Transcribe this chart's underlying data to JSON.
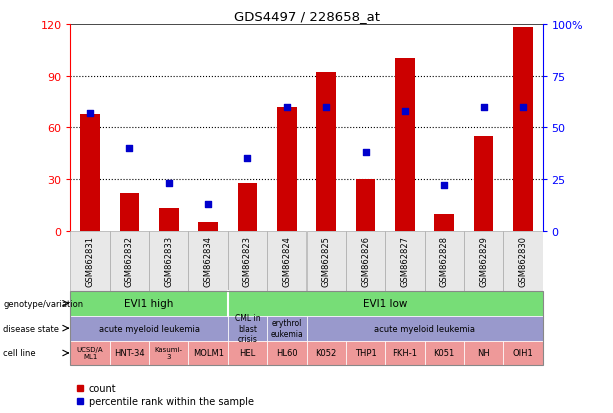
{
  "title": "GDS4497 / 228658_at",
  "samples": [
    "GSM862831",
    "GSM862832",
    "GSM862833",
    "GSM862834",
    "GSM862823",
    "GSM862824",
    "GSM862825",
    "GSM862826",
    "GSM862827",
    "GSM862828",
    "GSM862829",
    "GSM862830"
  ],
  "counts": [
    68,
    22,
    13,
    5,
    28,
    72,
    92,
    30,
    100,
    10,
    55,
    118
  ],
  "percentiles": [
    57,
    40,
    23,
    13,
    35,
    60,
    60,
    38,
    58,
    22,
    60,
    60
  ],
  "ylim_left": [
    0,
    120
  ],
  "ylim_right": [
    0,
    100
  ],
  "yticks_left": [
    0,
    30,
    60,
    90,
    120
  ],
  "yticks_right": [
    0,
    25,
    50,
    75,
    100
  ],
  "ytick_labels_left": [
    "0",
    "30",
    "60",
    "90",
    "120"
  ],
  "ytick_labels_right": [
    "0",
    "25",
    "50",
    "75",
    "100%"
  ],
  "bar_color": "#cc0000",
  "dot_color": "#0000cc",
  "genotype_groups": [
    {
      "label": "EVI1 high",
      "start": 0,
      "end": 4,
      "color": "#77dd77"
    },
    {
      "label": "EVI1 low",
      "start": 4,
      "end": 12,
      "color": "#77dd77"
    }
  ],
  "disease_groups": [
    {
      "label": "acute myeloid leukemia",
      "start": 0,
      "end": 4,
      "color": "#9999cc"
    },
    {
      "label": "CML in\nblast\ncrisis",
      "start": 4,
      "end": 5,
      "color": "#9999cc"
    },
    {
      "label": "erythrol\neukemia",
      "start": 5,
      "end": 6,
      "color": "#9999cc"
    },
    {
      "label": "acute myeloid leukemia",
      "start": 6,
      "end": 12,
      "color": "#9999cc"
    }
  ],
  "cell_lines": [
    {
      "label": "UCSD/A\nML1",
      "start": 0,
      "end": 1
    },
    {
      "label": "HNT-34",
      "start": 1,
      "end": 2
    },
    {
      "label": "Kasumi-\n3",
      "start": 2,
      "end": 3
    },
    {
      "label": "MOLM1",
      "start": 3,
      "end": 4
    },
    {
      "label": "HEL",
      "start": 4,
      "end": 5
    },
    {
      "label": "HL60",
      "start": 5,
      "end": 6
    },
    {
      "label": "K052",
      "start": 6,
      "end": 7
    },
    {
      "label": "THP1",
      "start": 7,
      "end": 8
    },
    {
      "label": "FKH-1",
      "start": 8,
      "end": 9
    },
    {
      "label": "K051",
      "start": 9,
      "end": 10
    },
    {
      "label": "NH",
      "start": 10,
      "end": 11
    },
    {
      "label": "OIH1",
      "start": 11,
      "end": 12
    }
  ],
  "cell_line_color": "#ee9999",
  "row_labels": [
    "genotype/variation",
    "disease state",
    "cell line"
  ],
  "background_color": "#ffffff"
}
